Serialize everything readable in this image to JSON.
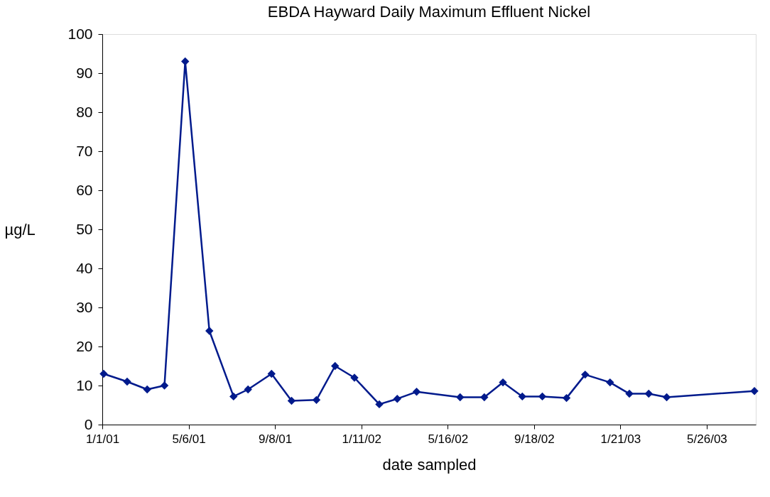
{
  "chart_data": {
    "type": "line",
    "title": "EBDA Hayward Daily Maximum Effluent Nickel",
    "xlabel": "date sampled",
    "ylabel": "µg/L",
    "x": [
      "2001-01-03",
      "2001-02-06",
      "2001-03-07",
      "2001-04-01",
      "2001-05-01",
      "2001-06-05",
      "2001-07-10",
      "2001-07-31",
      "2001-09-03",
      "2001-10-02",
      "2001-11-07",
      "2001-12-04",
      "2002-01-01",
      "2002-02-06",
      "2002-03-04",
      "2002-04-01",
      "2002-06-03",
      "2002-07-08",
      "2002-08-04",
      "2002-09-01",
      "2002-09-30",
      "2002-11-04",
      "2002-12-01",
      "2003-01-06",
      "2003-02-03",
      "2003-03-03",
      "2003-03-29",
      "2003-08-03"
    ],
    "series": [
      {
        "color": "#001a8c",
        "values": [
          13,
          11,
          9,
          10,
          93,
          24,
          7.2,
          9,
          13,
          6.1,
          6.3,
          15,
          12,
          5.2,
          6.6,
          8.4,
          7,
          7,
          10.8,
          7.2,
          7.2,
          6.8,
          12.8,
          10.8,
          7.9,
          7.9,
          7,
          8.6
        ]
      }
    ],
    "xlim": [
      "2001-01-01",
      "2003-08-05"
    ],
    "xticks": [
      {
        "value": "2001-01-01",
        "label": "1/1/01"
      },
      {
        "value": "2001-05-06",
        "label": "5/6/01"
      },
      {
        "value": "2001-09-08",
        "label": "9/8/01"
      },
      {
        "value": "2002-01-11",
        "label": "1/11/02"
      },
      {
        "value": "2002-05-16",
        "label": "5/16/02"
      },
      {
        "value": "2002-09-18",
        "label": "9/18/02"
      },
      {
        "value": "2003-01-21",
        "label": "1/21/03"
      },
      {
        "value": "2003-05-26",
        "label": "5/26/03"
      }
    ],
    "ylim": [
      0,
      100
    ],
    "yticks": [
      0,
      10,
      20,
      30,
      40,
      50,
      60,
      70,
      80,
      90,
      100
    ],
    "grid": false,
    "marker": "diamond",
    "line_style": "solid"
  }
}
